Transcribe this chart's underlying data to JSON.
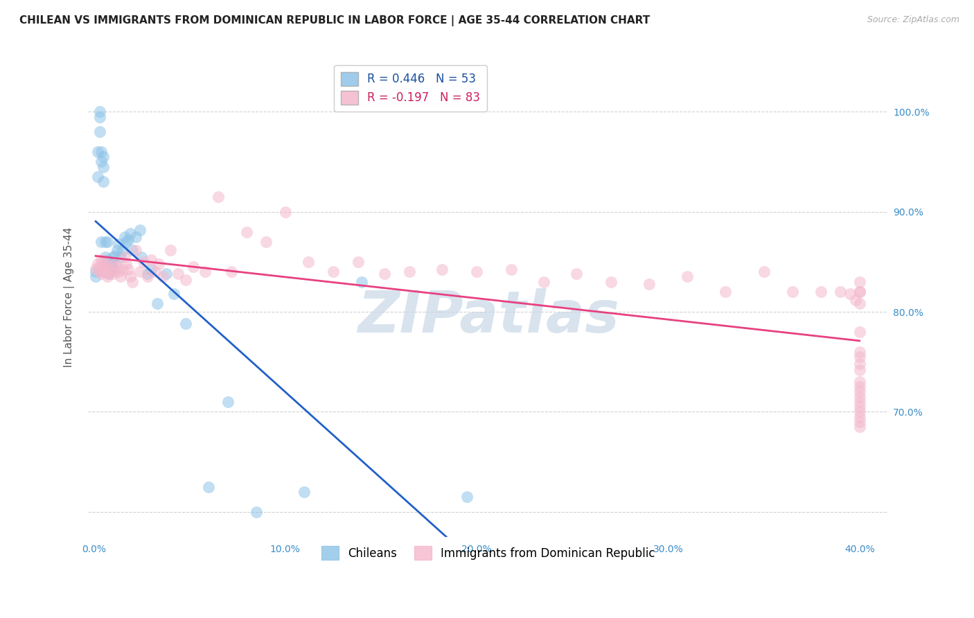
{
  "title": "CHILEAN VS IMMIGRANTS FROM DOMINICAN REPUBLIC IN LABOR FORCE | AGE 35-44 CORRELATION CHART",
  "source": "Source: ZipAtlas.com",
  "ylabel": "In Labor Force | Age 35-44",
  "xlim": [
    -0.003,
    0.415
  ],
  "ylim": [
    0.575,
    1.055
  ],
  "xticks": [
    0.0,
    0.05,
    0.1,
    0.15,
    0.2,
    0.25,
    0.3,
    0.35,
    0.4
  ],
  "xticklabels": [
    "0.0%",
    "",
    "10.0%",
    "",
    "20.0%",
    "",
    "30.0%",
    "",
    "40.0%"
  ],
  "yticks": [
    0.6,
    0.7,
    0.8,
    0.9,
    1.0
  ],
  "yticklabels_right": [
    "",
    "70.0%",
    "80.0%",
    "90.0%",
    "100.0%"
  ],
  "legend_r_blue": "R = 0.446",
  "legend_n_blue": "N = 53",
  "legend_r_pink": "R = -0.197",
  "legend_n_pink": "N = 83",
  "label_blue": "Chileans",
  "label_pink": "Immigrants from Dominican Republic",
  "blue_color": "#8ec4e8",
  "pink_color": "#f4b8cc",
  "trend_blue_color": "#2060c8",
  "trend_pink_color": "#e84080",
  "title_fontsize": 11,
  "axis_label_fontsize": 11,
  "tick_fontsize": 10,
  "legend_fontsize": 12,
  "watermark_text": "ZIPatlas",
  "watermark_color": "#c8d8e8",
  "watermark_fontsize": 60,
  "blue_x": [
    0.001,
    0.001,
    0.002,
    0.002,
    0.003,
    0.003,
    0.003,
    0.004,
    0.004,
    0.004,
    0.005,
    0.005,
    0.005,
    0.006,
    0.006,
    0.006,
    0.006,
    0.007,
    0.007,
    0.007,
    0.008,
    0.008,
    0.008,
    0.009,
    0.009,
    0.01,
    0.01,
    0.01,
    0.011,
    0.012,
    0.013,
    0.014,
    0.015,
    0.016,
    0.017,
    0.018,
    0.019,
    0.02,
    0.022,
    0.024,
    0.025,
    0.028,
    0.03,
    0.033,
    0.038,
    0.042,
    0.048,
    0.06,
    0.07,
    0.085,
    0.11,
    0.14,
    0.195
  ],
  "blue_y": [
    0.84,
    0.835,
    0.96,
    0.935,
    1.0,
    0.98,
    0.995,
    0.95,
    0.87,
    0.96,
    0.93,
    0.955,
    0.945,
    0.87,
    0.845,
    0.84,
    0.855,
    0.87,
    0.845,
    0.852,
    0.85,
    0.843,
    0.838,
    0.842,
    0.848,
    0.843,
    0.85,
    0.855,
    0.856,
    0.862,
    0.868,
    0.855,
    0.862,
    0.875,
    0.87,
    0.872,
    0.878,
    0.862,
    0.875,
    0.882,
    0.855,
    0.838,
    0.842,
    0.808,
    0.838,
    0.818,
    0.788,
    0.625,
    0.71,
    0.6,
    0.62,
    0.83,
    0.615
  ],
  "pink_x": [
    0.001,
    0.002,
    0.003,
    0.003,
    0.004,
    0.004,
    0.005,
    0.005,
    0.006,
    0.006,
    0.007,
    0.007,
    0.008,
    0.008,
    0.009,
    0.01,
    0.011,
    0.012,
    0.013,
    0.014,
    0.015,
    0.016,
    0.017,
    0.018,
    0.019,
    0.02,
    0.022,
    0.024,
    0.026,
    0.028,
    0.03,
    0.032,
    0.034,
    0.036,
    0.04,
    0.044,
    0.048,
    0.052,
    0.058,
    0.065,
    0.072,
    0.08,
    0.09,
    0.1,
    0.112,
    0.125,
    0.138,
    0.152,
    0.165,
    0.182,
    0.2,
    0.218,
    0.235,
    0.252,
    0.27,
    0.29,
    0.31,
    0.33,
    0.35,
    0.365,
    0.38,
    0.39,
    0.395,
    0.398,
    0.4,
    0.4,
    0.4,
    0.4,
    0.4,
    0.4,
    0.4,
    0.4,
    0.4,
    0.4,
    0.4,
    0.4,
    0.4,
    0.4,
    0.4,
    0.4,
    0.4,
    0.4,
    0.4
  ],
  "pink_y": [
    0.843,
    0.848,
    0.84,
    0.845,
    0.852,
    0.838,
    0.842,
    0.85,
    0.84,
    0.845,
    0.848,
    0.835,
    0.838,
    0.842,
    0.84,
    0.838,
    0.848,
    0.845,
    0.84,
    0.835,
    0.842,
    0.855,
    0.848,
    0.842,
    0.835,
    0.83,
    0.862,
    0.84,
    0.85,
    0.835,
    0.852,
    0.84,
    0.848,
    0.835,
    0.862,
    0.838,
    0.832,
    0.845,
    0.84,
    0.915,
    0.84,
    0.88,
    0.87,
    0.9,
    0.85,
    0.84,
    0.85,
    0.838,
    0.84,
    0.842,
    0.84,
    0.842,
    0.83,
    0.838,
    0.83,
    0.828,
    0.835,
    0.82,
    0.84,
    0.82,
    0.82,
    0.82,
    0.818,
    0.812,
    0.808,
    0.82,
    0.82,
    0.83,
    0.78,
    0.76,
    0.755,
    0.748,
    0.742,
    0.73,
    0.725,
    0.72,
    0.715,
    0.71,
    0.705,
    0.7,
    0.695,
    0.69,
    0.685
  ]
}
